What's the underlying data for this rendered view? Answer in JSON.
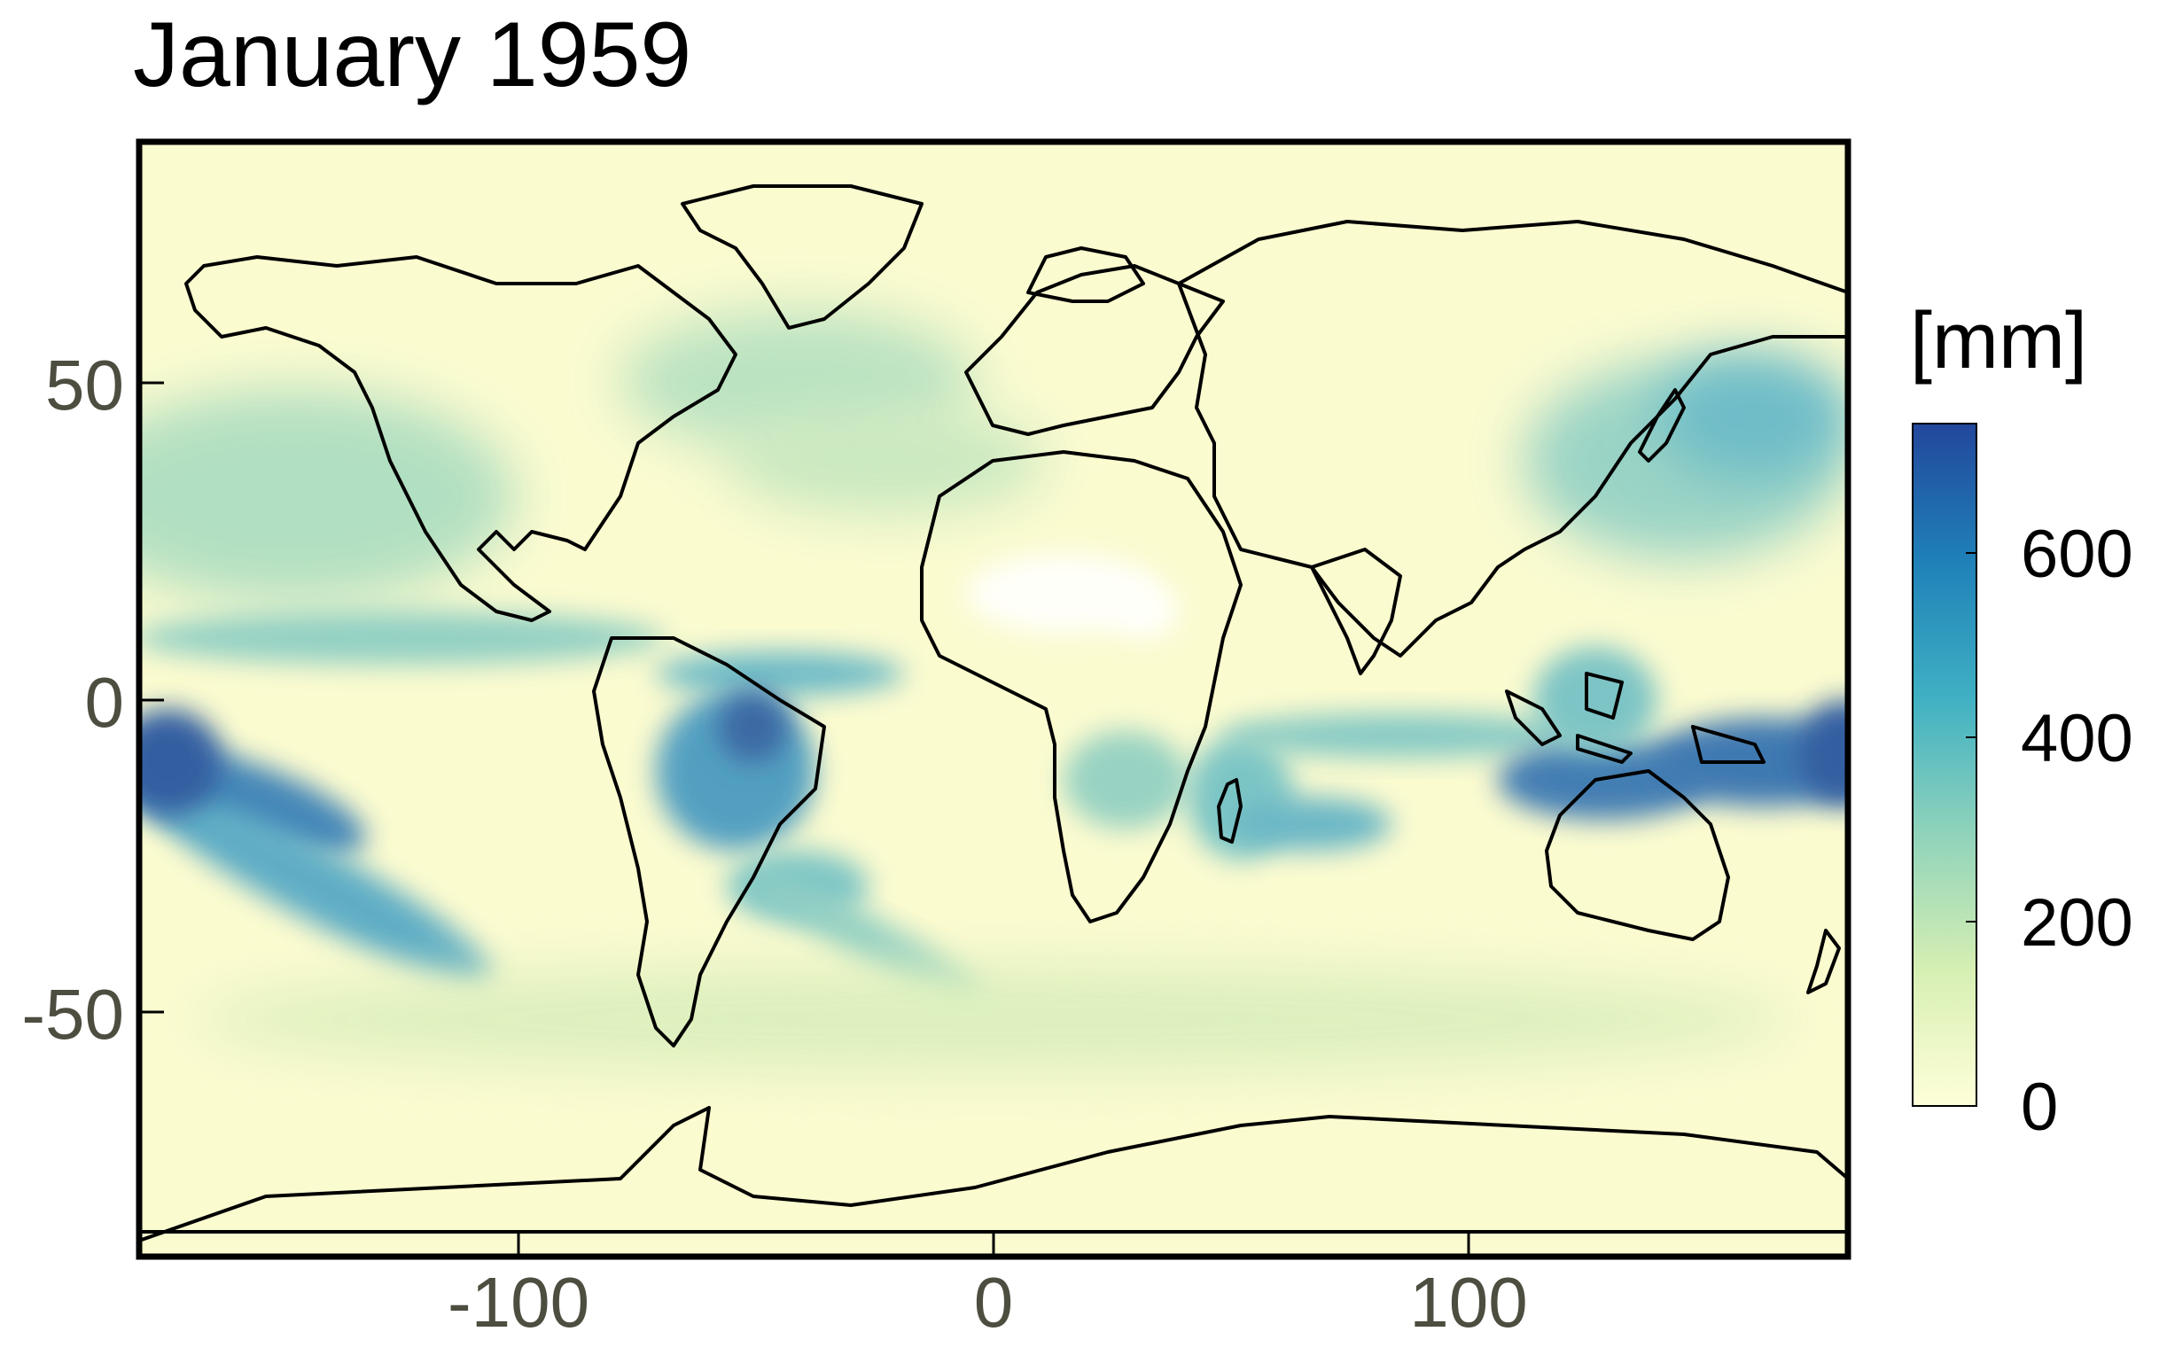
{
  "title": "January 1959",
  "map": {
    "projection": "plate-carree",
    "lon_range": [
      -180,
      180
    ],
    "lat_range": [
      -90,
      90
    ],
    "x_ticks": [
      "-100",
      "0",
      "100"
    ],
    "y_ticks": [
      "50",
      "0",
      "-50"
    ],
    "ocean_color": "#fbfbd0",
    "coastline_color": "#000000"
  },
  "colorbar": {
    "title": "[mm]",
    "ticks": [
      "0",
      "200",
      "400",
      "600"
    ],
    "range": [
      0,
      740
    ],
    "colors": [
      "#ffffd9",
      "#d6efb3",
      "#8fd3bb",
      "#3fb0c3",
      "#1f80b8",
      "#22479c"
    ]
  },
  "precip_features": [
    {
      "name": "Amazon basin",
      "intensity": 0.85
    },
    {
      "name": "Maritime continent / Indonesia",
      "intensity": 0.9
    },
    {
      "name": "South Pacific convergence zone",
      "intensity": 0.75
    },
    {
      "name": "Pacific ITCZ",
      "intensity": 0.5
    },
    {
      "name": "Atlantic ITCZ",
      "intensity": 0.55
    },
    {
      "name": "North Pacific storm track",
      "intensity": 0.45
    },
    {
      "name": "North Atlantic storm track",
      "intensity": 0.4
    },
    {
      "name": "Southern Africa",
      "intensity": 0.4
    },
    {
      "name": "South Indian Ocean",
      "intensity": 0.45
    },
    {
      "name": "Southern Ocean storm track",
      "intensity": 0.3
    }
  ]
}
